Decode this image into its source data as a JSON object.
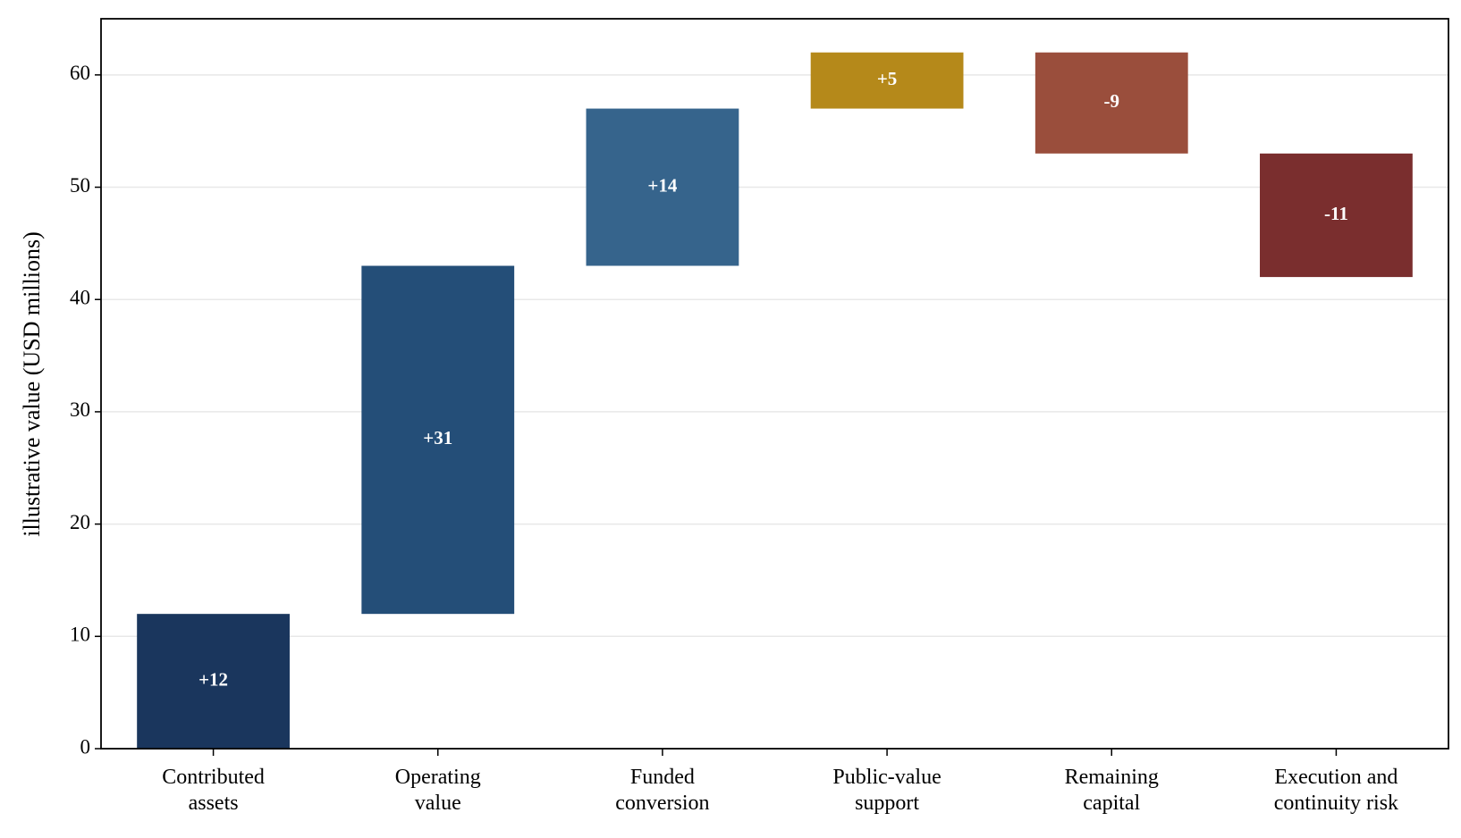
{
  "chart_data": {
    "type": "waterfall",
    "y_label": "illustrative value (USD millions)",
    "categories": [
      "Contributed\nassets",
      "Operating\nvalue",
      "Funded\nconversion",
      "Public-value\nsupport",
      "Remaining\ncapital",
      "Execution and\ncontinuity risk"
    ],
    "values": [
      12,
      31,
      14,
      5,
      -9,
      -11
    ],
    "value_labels": [
      "+12",
      "+31",
      "+14",
      "+5",
      "-9",
      "-11"
    ],
    "colors": [
      "#1a365d",
      "#244e78",
      "#36648c",
      "#b5891a",
      "#9a4e3c",
      "#7a2e2e"
    ],
    "ylim": [
      0,
      65
    ],
    "yticks": [
      0,
      10,
      20,
      30,
      40,
      50,
      60
    ],
    "grid": true
  }
}
